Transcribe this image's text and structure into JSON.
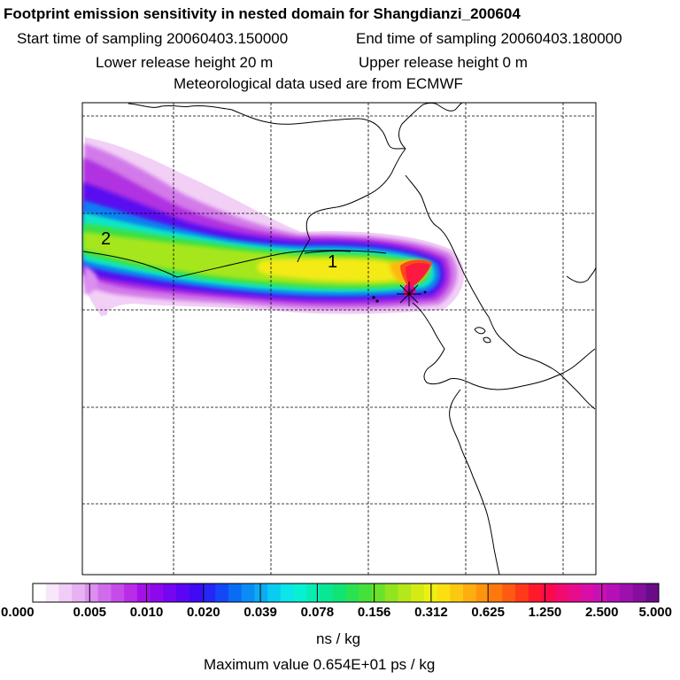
{
  "header": {
    "title": "Footprint emission sensitivity in nested domain for Shangdianzi_200604",
    "start_time": "Start time of sampling 20060403.150000",
    "end_time": "End time of sampling 20060403.180000",
    "lower_release": "Lower release height   20 m",
    "upper_release": "Upper release height    0 m",
    "met_data": "Meteorological data used are from ECMWF"
  },
  "map": {
    "contour_labels": [
      "2",
      "1"
    ],
    "colors": {
      "frame": "#000000",
      "grid": "#000000",
      "coastline": "#000000",
      "station_marker": "#000000"
    }
  },
  "colorbar": {
    "tick_labels": [
      "0.000",
      "0.005",
      "0.010",
      "0.020",
      "0.039",
      "0.078",
      "0.156",
      "0.312",
      "0.625",
      "1.250",
      "2.500",
      "5.000"
    ],
    "units": "ns / kg",
    "colors": [
      "#ffffff",
      "#f8e6fb",
      "#f0ccf7",
      "#e7b2f3",
      "#dc8ff0",
      "#d06cec",
      "#c64cea",
      "#b92ce8",
      "#a510e8",
      "#8e08ec",
      "#7406f0",
      "#5a06f4",
      "#3f0af6",
      "#2626f7",
      "#1448f6",
      "#0a6cf5",
      "#0a8cf4",
      "#0aacf2",
      "#0acbf0",
      "#0ae6ea",
      "#08f0d4",
      "#08ecb4",
      "#08e894",
      "#10e474",
      "#28e254",
      "#46e03a",
      "#6ae22a",
      "#90e420",
      "#b4e81a",
      "#d4ec16",
      "#eef014",
      "#fae012",
      "#fcc810",
      "#feae0e",
      "#fe940c",
      "#fe780e",
      "#fe5a12",
      "#fe3a1a",
      "#fe1a2a",
      "#fc0a4a",
      "#f20a6c",
      "#e60c8c",
      "#d80ea6",
      "#c810b4",
      "#b410b6",
      "#9e10ae",
      "#860e9e",
      "#6a0c88"
    ]
  },
  "footer": {
    "maximum_value": "Maximum value  0.654E+01 ps / kg"
  }
}
